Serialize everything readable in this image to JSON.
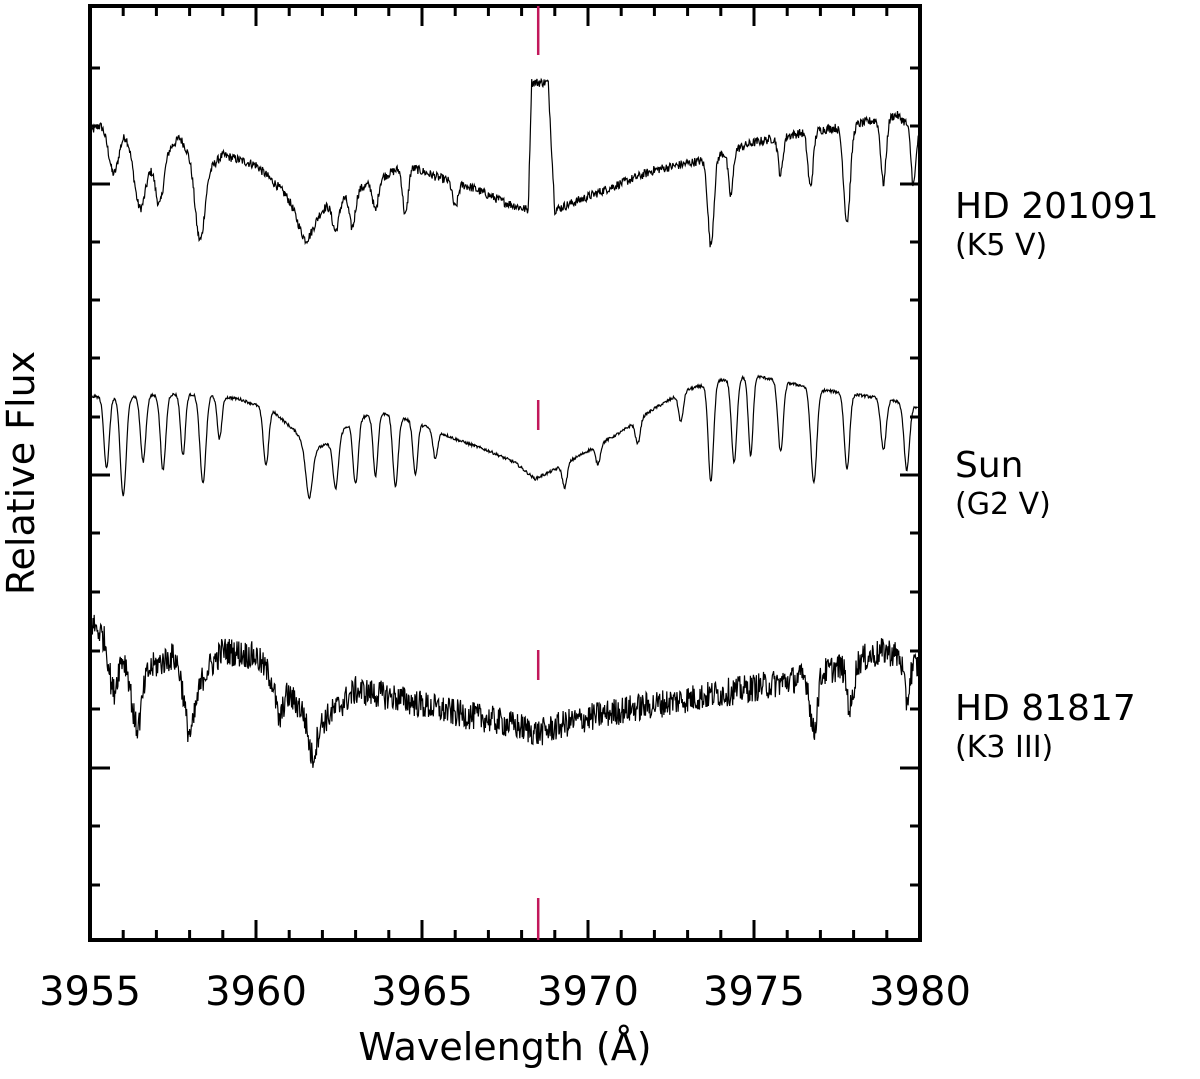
{
  "chart_data": {
    "type": "line",
    "xlabel": "Wavelength (Å)",
    "ylabel": "Relative Flux",
    "xlim": [
      3955,
      3980
    ],
    "x_ticks": [
      "3955",
      "3960",
      "3965",
      "3970",
      "3975",
      "3980"
    ],
    "y_tick_labels_shown": false,
    "grid": false,
    "marker_wavelength": 3968.5,
    "marker_color": "#c2185b",
    "line_color": "#000000",
    "series": [
      {
        "name": "HD 201091",
        "type_label": "(K5 V)",
        "noise": "medium",
        "emission_core": true,
        "points": [
          [
            3955.0,
            0.75
          ],
          [
            3955.6,
            0.82
          ],
          [
            3956.2,
            0.74
          ],
          [
            3957.0,
            0.63
          ],
          [
            3957.7,
            0.73
          ],
          [
            3958.4,
            0.58
          ],
          [
            3959.0,
            0.66
          ],
          [
            3960.0,
            0.62
          ],
          [
            3961.0,
            0.49
          ],
          [
            3961.5,
            0.42
          ],
          [
            3962.3,
            0.47
          ],
          [
            3963.5,
            0.55
          ],
          [
            3964.5,
            0.62
          ],
          [
            3965.5,
            0.57
          ],
          [
            3966.5,
            0.53
          ],
          [
            3967.5,
            0.47
          ],
          [
            3968.2,
            0.44
          ],
          [
            3968.3,
            0.95
          ],
          [
            3968.8,
            0.95
          ],
          [
            3969.0,
            0.44
          ],
          [
            3970.5,
            0.52
          ],
          [
            3972.0,
            0.6
          ],
          [
            3973.5,
            0.64
          ],
          [
            3975.0,
            0.71
          ],
          [
            3976.5,
            0.75
          ],
          [
            3978.0,
            0.78
          ],
          [
            3979.3,
            0.82
          ],
          [
            3980.0,
            0.74
          ]
        ],
        "lines": [
          [
            3955.7,
            0.22,
            0.16
          ],
          [
            3956.5,
            0.25,
            0.18
          ],
          [
            3957.1,
            0.18,
            0.12
          ],
          [
            3958.3,
            0.28,
            0.14
          ],
          [
            3961.5,
            0.1,
            0.25
          ],
          [
            3962.4,
            0.12,
            0.1
          ],
          [
            3962.9,
            0.14,
            0.09
          ],
          [
            3963.6,
            0.12,
            0.08
          ],
          [
            3964.5,
            0.2,
            0.08
          ],
          [
            3966.0,
            0.1,
            0.08
          ],
          [
            3973.7,
            0.35,
            0.09
          ],
          [
            3974.3,
            0.18,
            0.07
          ],
          [
            3975.8,
            0.15,
            0.07
          ],
          [
            3976.7,
            0.22,
            0.08
          ],
          [
            3977.8,
            0.38,
            0.1
          ],
          [
            3978.9,
            0.26,
            0.08
          ],
          [
            3979.8,
            0.22,
            0.07
          ]
        ]
      },
      {
        "name": "Sun",
        "type_label": "(G2 V)",
        "noise": "low",
        "emission_core": false,
        "points": [
          [
            3955.0,
            0.78
          ],
          [
            3956.0,
            0.78
          ],
          [
            3957.5,
            0.79
          ],
          [
            3958.5,
            0.79
          ],
          [
            3959.5,
            0.77
          ],
          [
            3960.5,
            0.72
          ],
          [
            3961.2,
            0.63
          ],
          [
            3961.6,
            0.55
          ],
          [
            3962.2,
            0.58
          ],
          [
            3963.0,
            0.69
          ],
          [
            3964.0,
            0.71
          ],
          [
            3965.0,
            0.66
          ],
          [
            3966.0,
            0.6
          ],
          [
            3967.0,
            0.55
          ],
          [
            3967.8,
            0.5
          ],
          [
            3968.4,
            0.43
          ],
          [
            3969.0,
            0.47
          ],
          [
            3970.0,
            0.55
          ],
          [
            3971.0,
            0.63
          ],
          [
            3972.0,
            0.73
          ],
          [
            3973.0,
            0.81
          ],
          [
            3974.0,
            0.85
          ],
          [
            3975.0,
            0.87
          ],
          [
            3976.0,
            0.84
          ],
          [
            3977.0,
            0.81
          ],
          [
            3978.0,
            0.79
          ],
          [
            3979.0,
            0.77
          ],
          [
            3980.0,
            0.73
          ]
        ],
        "lines": [
          [
            3955.5,
            0.3,
            0.08
          ],
          [
            3956.0,
            0.42,
            0.09
          ],
          [
            3956.6,
            0.28,
            0.08
          ],
          [
            3957.2,
            0.32,
            0.08
          ],
          [
            3957.8,
            0.26,
            0.07
          ],
          [
            3958.4,
            0.38,
            0.09
          ],
          [
            3958.9,
            0.18,
            0.07
          ],
          [
            3960.3,
            0.24,
            0.08
          ],
          [
            3961.6,
            0.2,
            0.1
          ],
          [
            3962.4,
            0.22,
            0.08
          ],
          [
            3963.0,
            0.28,
            0.08
          ],
          [
            3963.6,
            0.26,
            0.07
          ],
          [
            3964.2,
            0.3,
            0.08
          ],
          [
            3964.8,
            0.22,
            0.07
          ],
          [
            3965.4,
            0.12,
            0.07
          ],
          [
            3969.3,
            0.1,
            0.07
          ],
          [
            3970.3,
            0.08,
            0.07
          ],
          [
            3971.5,
            0.1,
            0.07
          ],
          [
            3972.8,
            0.12,
            0.07
          ],
          [
            3973.7,
            0.42,
            0.08
          ],
          [
            3974.4,
            0.36,
            0.08
          ],
          [
            3974.9,
            0.34,
            0.07
          ],
          [
            3975.8,
            0.3,
            0.08
          ],
          [
            3976.8,
            0.4,
            0.09
          ],
          [
            3977.8,
            0.32,
            0.08
          ],
          [
            3978.9,
            0.22,
            0.08
          ],
          [
            3979.6,
            0.28,
            0.08
          ]
        ]
      },
      {
        "name": "HD 81817",
        "type_label": "(K3 III)",
        "noise": "high",
        "emission_core": false,
        "points": [
          [
            3955.0,
            0.8
          ],
          [
            3955.6,
            0.73
          ],
          [
            3956.5,
            0.62
          ],
          [
            3957.5,
            0.68
          ],
          [
            3958.3,
            0.6
          ],
          [
            3959.0,
            0.7
          ],
          [
            3960.0,
            0.68
          ],
          [
            3960.5,
            0.6
          ],
          [
            3961.5,
            0.48
          ],
          [
            3962.0,
            0.45
          ],
          [
            3963.0,
            0.56
          ],
          [
            3964.0,
            0.54
          ],
          [
            3965.0,
            0.51
          ],
          [
            3966.0,
            0.48
          ],
          [
            3967.0,
            0.46
          ],
          [
            3968.0,
            0.43
          ],
          [
            3968.5,
            0.41
          ],
          [
            3969.5,
            0.45
          ],
          [
            3971.0,
            0.49
          ],
          [
            3972.5,
            0.52
          ],
          [
            3974.0,
            0.55
          ],
          [
            3975.5,
            0.58
          ],
          [
            3977.0,
            0.62
          ],
          [
            3978.0,
            0.66
          ],
          [
            3979.0,
            0.7
          ],
          [
            3980.0,
            0.64
          ]
        ],
        "lines": [
          [
            3955.7,
            0.16,
            0.12
          ],
          [
            3956.4,
            0.2,
            0.15
          ],
          [
            3958.0,
            0.22,
            0.16
          ],
          [
            3960.7,
            0.12,
            0.1
          ],
          [
            3961.7,
            0.14,
            0.12
          ],
          [
            3976.8,
            0.2,
            0.1
          ],
          [
            3977.9,
            0.16,
            0.1
          ],
          [
            3979.6,
            0.14,
            0.08
          ]
        ]
      }
    ]
  }
}
